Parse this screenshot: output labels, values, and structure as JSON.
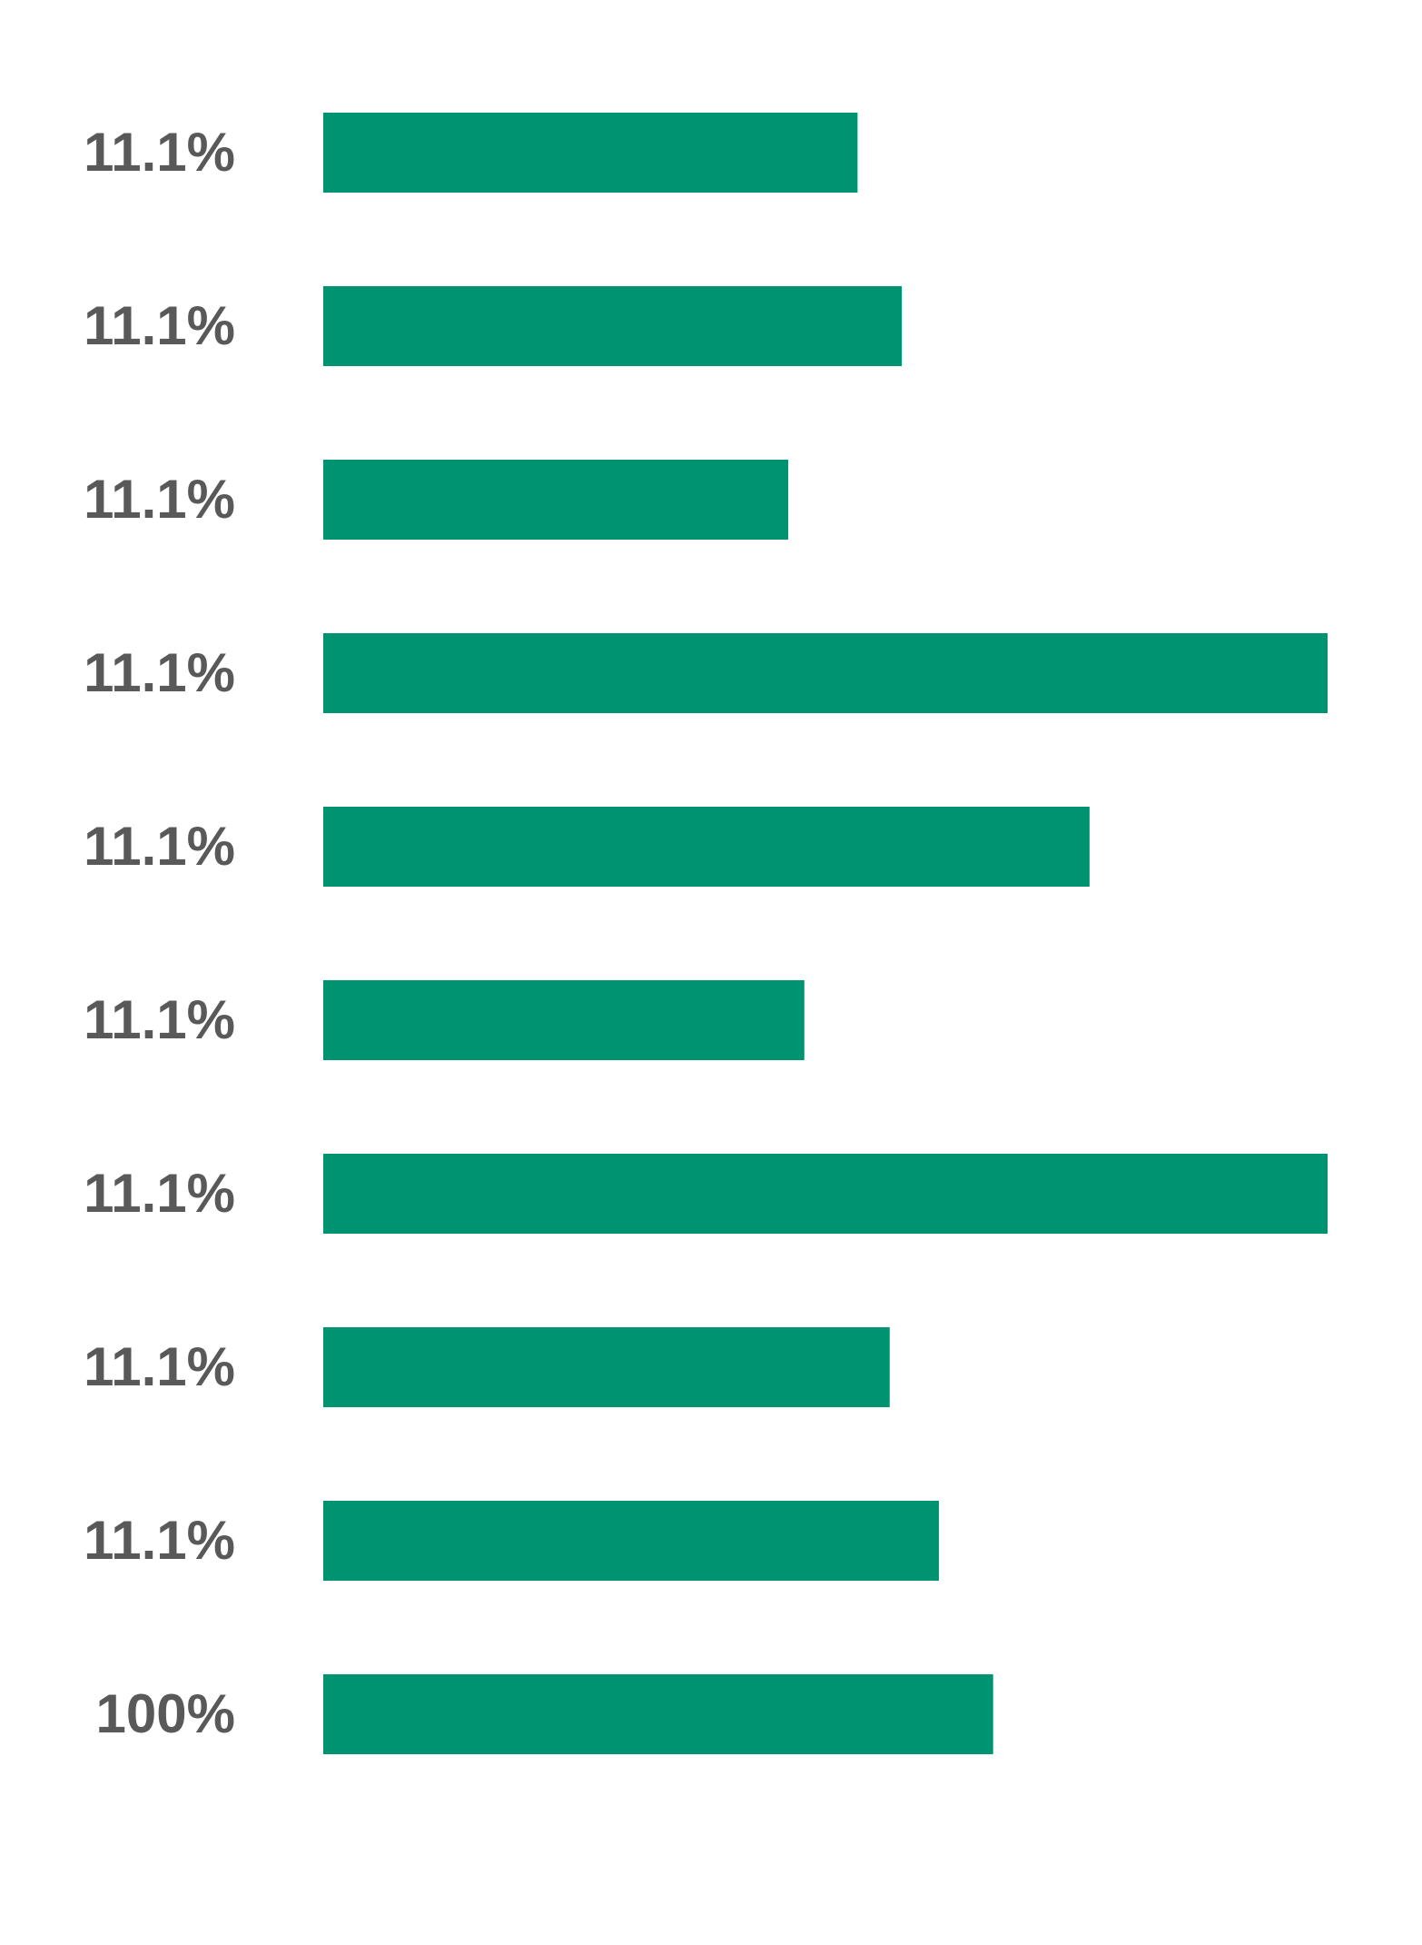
{
  "chart_data": {
    "type": "hbar",
    "categories": [
      "11.1%",
      "11.1%",
      "11.1%",
      "11.1%",
      "11.1%",
      "11.1%",
      "11.1%",
      "11.1%",
      "11.1%",
      "100%"
    ],
    "values": [
      53.2,
      57.6,
      46.3,
      100,
      76.3,
      47.9,
      100,
      56.4,
      61.3,
      66.7
    ],
    "color": "#009371",
    "xlim": [
      0,
      100
    ]
  }
}
